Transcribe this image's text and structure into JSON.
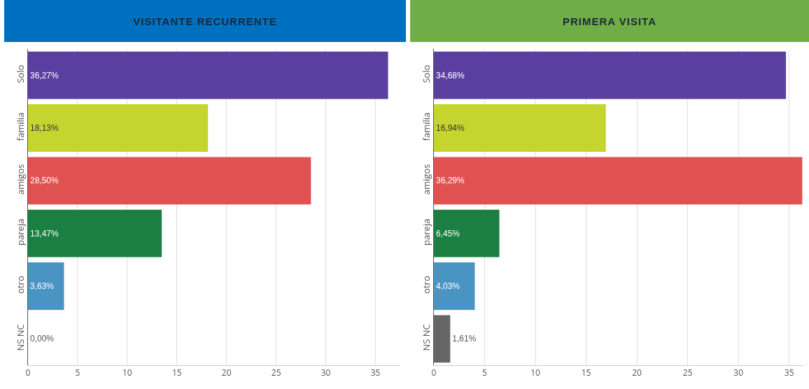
{
  "chart_data": [
    {
      "type": "bar",
      "title": "VISITANTE RECURRENTE",
      "orientation": "horizontal",
      "categories": [
        "Solo",
        "familia",
        "amigos",
        "pareja",
        "otro",
        "NS NC"
      ],
      "values": [
        36.27,
        18.13,
        28.5,
        13.47,
        3.63,
        0
      ],
      "colors": [
        "#5b3fa0",
        "#c5d42e",
        "#e05252",
        "#1a7f40",
        "#4a94c4",
        "#666666"
      ],
      "value_labels": [
        "36,27%",
        "18,13%",
        "28,50%",
        "13,47%",
        "3,63%",
        "0,00%"
      ],
      "xlim": [
        0,
        37.5
      ],
      "xticks": [
        0,
        5,
        10,
        15,
        20,
        25,
        30,
        35
      ],
      "grid": "x"
    },
    {
      "type": "bar",
      "title": "PRIMERA VISITA",
      "orientation": "horizontal",
      "categories": [
        "Solo",
        "familia",
        "amigos",
        "pareja",
        "otro",
        "NS NC"
      ],
      "values": [
        34.68,
        16.94,
        36.29,
        6.45,
        4.03,
        1.61
      ],
      "colors": [
        "#5b3fa0",
        "#c5d42e",
        "#e05252",
        "#1a7f40",
        "#4a94c4",
        "#666666"
      ],
      "value_labels": [
        "34,68%",
        "16,94%",
        "36,29%",
        "6,45%",
        "4,03%",
        "1,61%"
      ],
      "xlim": [
        0,
        36.4
      ],
      "xticks": [
        0,
        5,
        10,
        15,
        20,
        25,
        30,
        35
      ],
      "grid": "x"
    }
  ]
}
